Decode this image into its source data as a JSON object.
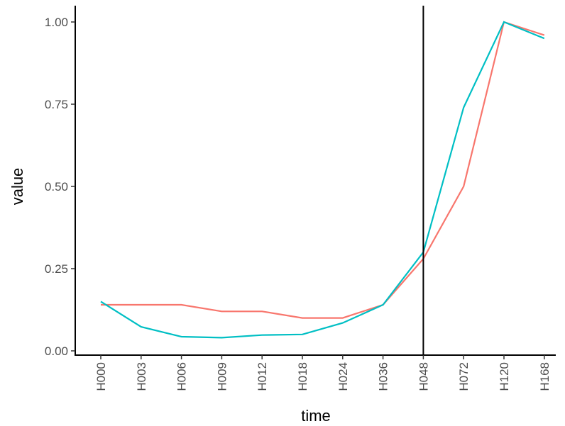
{
  "chart_data": {
    "type": "line",
    "xlabel": "time",
    "ylabel": "value",
    "categories": [
      "H000",
      "H003",
      "H006",
      "H009",
      "H012",
      "H018",
      "H024",
      "H036",
      "H048",
      "H072",
      "H120",
      "H168"
    ],
    "ylim": [
      0,
      1.0
    ],
    "yticks": [
      0,
      0.25,
      0.5,
      0.75,
      1.0
    ],
    "ytick_labels": [
      "0.00",
      "0.25",
      "0.50",
      "0.75",
      "1.00"
    ],
    "vline_at": "H048",
    "grid": false,
    "legend": "none",
    "series": [
      {
        "color": "#F8766D",
        "values": [
          0.14,
          0.14,
          0.14,
          0.12,
          0.12,
          0.1,
          0.1,
          0.14,
          0.28,
          0.5,
          1.0,
          0.96
        ]
      },
      {
        "color": "#00BFC4",
        "values": [
          0.15,
          0.073,
          0.043,
          0.04,
          0.048,
          0.05,
          0.085,
          0.14,
          0.3,
          0.74,
          1.0,
          0.95
        ]
      }
    ]
  }
}
